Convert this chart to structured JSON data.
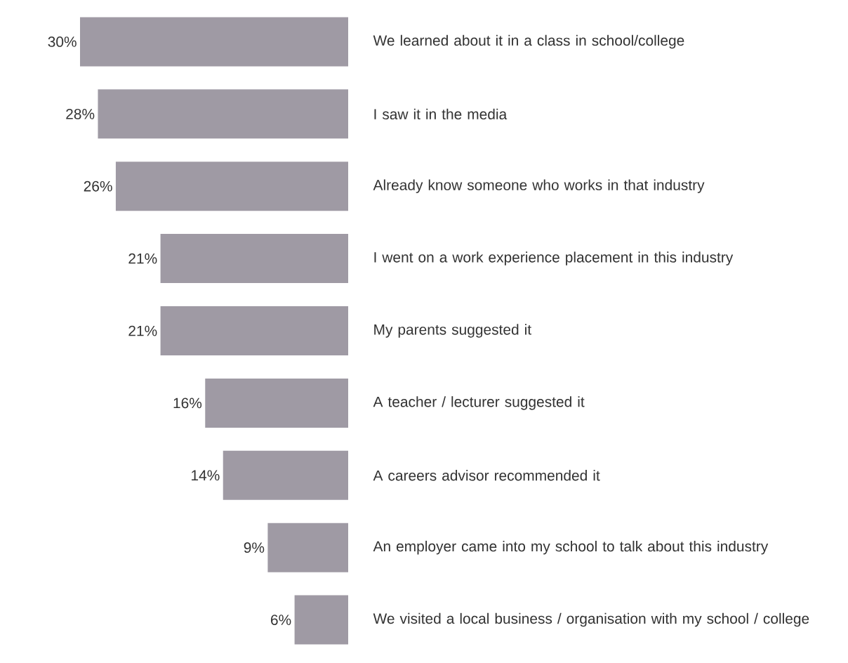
{
  "chart_data": {
    "type": "bar",
    "orientation": "horizontal",
    "categories": [
      "We learned about it in a class in school/college",
      "I saw it in the media",
      "Already know someone who works in that industry",
      "I went on a work experience placement in this industry",
      "My parents suggested it",
      "A teacher / lecturer suggested it",
      "A careers advisor recommended it",
      "An employer came into my school to talk about this industry",
      "We visited a local business / organisation with my school / college"
    ],
    "values": [
      30,
      28,
      26,
      21,
      21,
      16,
      14,
      9,
      6
    ],
    "value_labels": [
      "30%",
      "28%",
      "26%",
      "21%",
      "21%",
      "16%",
      "14%",
      "9%",
      "6%"
    ],
    "color": "#9f9aa4"
  }
}
